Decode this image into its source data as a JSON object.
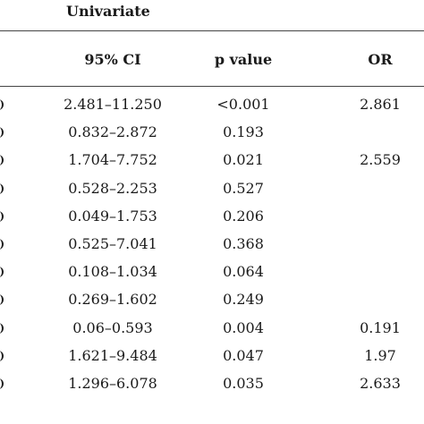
{
  "table": {
    "group_header": "Univariate",
    "columns": {
      "ci": "95% CI",
      "p_value": "p value",
      "or": "OR"
    },
    "rows": [
      {
        "ci": "2.481–11.250",
        "p": "<0.001",
        "or": "2.861"
      },
      {
        "ci": "0.832–2.872",
        "p": "0.193",
        "or": ""
      },
      {
        "ci": "1.704–7.752",
        "p": "0.021",
        "or": "2.559"
      },
      {
        "ci": "0.528–2.253",
        "p": "0.527",
        "or": ""
      },
      {
        "ci": "0.049–1.753",
        "p": "0.206",
        "or": ""
      },
      {
        "ci": "0.525–7.041",
        "p": "0.368",
        "or": ""
      },
      {
        "ci": "0.108–1.034",
        "p": "0.064",
        "or": ""
      },
      {
        "ci": "0.269–1.602",
        "p": "0.249",
        "or": ""
      },
      {
        "ci": "0.06–0.593",
        "p": "0.004",
        "or": "0.191"
      },
      {
        "ci": "1.621–9.484",
        "p": "0.047",
        "or": "1.97"
      },
      {
        "ci": "1.296–6.078",
        "p": "0.035",
        "or": "2.633"
      }
    ]
  }
}
